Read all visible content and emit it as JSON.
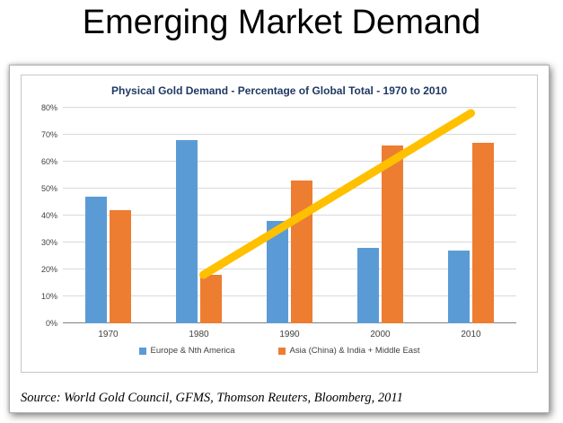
{
  "slide": {
    "title": "Emerging Market Demand",
    "source": "Source: World Gold Council, GFMS, Thomson Reuters, Bloomberg, 2011"
  },
  "chart_data": {
    "type": "bar",
    "title": "Physical Gold Demand - Percentage of Global Total - 1970 to 2010",
    "categories": [
      "1970",
      "1980",
      "1990",
      "2000",
      "2010"
    ],
    "series": [
      {
        "name": "Europe & Nth America",
        "color": "#5B9BD5",
        "values": [
          47,
          68,
          38,
          28,
          27
        ]
      },
      {
        "name": "Asia (China) & India + Middle East",
        "color": "#ED7D31",
        "values": [
          42,
          18,
          53,
          66,
          67
        ]
      }
    ],
    "xlabel": "",
    "ylabel": "",
    "ylim": [
      0,
      80
    ],
    "ytick_step": 10,
    "ytick_suffix": "%",
    "grid": true,
    "legend_position": "bottom",
    "annotation": {
      "type": "trend-line",
      "color": "#FFC000",
      "stroke_width": 9,
      "x1_frac": 0.31,
      "y1_value": 18,
      "x2_frac": 0.9,
      "y2_value": 78
    }
  }
}
